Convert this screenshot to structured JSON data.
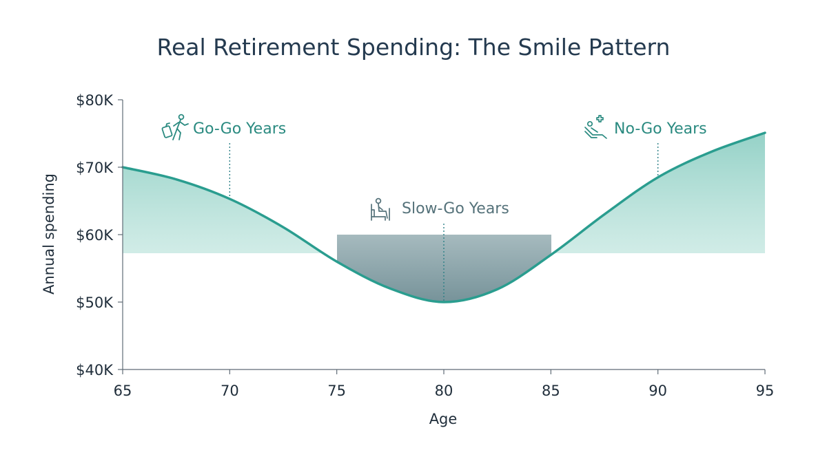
{
  "chart_data": {
    "type": "area",
    "title": "Real Retirement Spending: The Smile Pattern",
    "xlabel": "Age",
    "ylabel": "Annual spending",
    "xlim": [
      65,
      95
    ],
    "ylim": [
      40000,
      80000
    ],
    "x_ticks": [
      65,
      70,
      75,
      80,
      85,
      90,
      95
    ],
    "x_tick_labels": [
      "65",
      "70",
      "75",
      "80",
      "85",
      "90",
      "95"
    ],
    "y_ticks": [
      40000,
      50000,
      60000,
      70000,
      80000
    ],
    "y_tick_labels": [
      "$40K",
      "$50K",
      "$60K",
      "$70K",
      "$80K"
    ],
    "grid": false,
    "series": [
      {
        "x": [
          65,
          67.5,
          70,
          72.5,
          75,
          77.5,
          80,
          82.5,
          85,
          87.5,
          90,
          92.5,
          95
        ],
        "values": [
          70000,
          68200,
          65300,
          61100,
          56000,
          52000,
          50000,
          51900,
          57000,
          63000,
          68500,
          72300,
          75100
        ]
      }
    ],
    "annotations": [
      {
        "label": "Go-Go Years",
        "x": 70,
        "icon": "traveler-with-suitcase-icon"
      },
      {
        "label": "Slow-Go Years",
        "x": 80,
        "icon": "person-in-armchair-icon"
      },
      {
        "label": "No-Go Years",
        "x": 90,
        "icon": "reclining-patient-medical-cross-icon"
      }
    ],
    "colors": {
      "line": "#2a9d8f",
      "fill": "#9fd6cd",
      "trough_fill": "#7f9aa0",
      "annotation_text": "#2a8a80",
      "annotation_line": "#2a7f86",
      "axis": "#5f6b76",
      "title": "#243a4f",
      "text": "#1f2d3a"
    }
  }
}
